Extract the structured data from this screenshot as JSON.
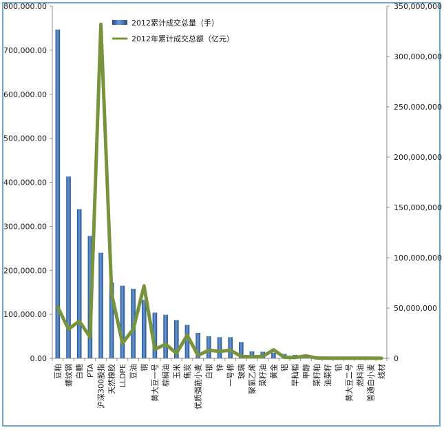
{
  "chart_data": {
    "type": "bar",
    "title": "",
    "xlabel": "",
    "ylabel": "",
    "y2label": "",
    "ylim": [
      0,
      800000
    ],
    "y2lim": [
      0,
      350000000
    ],
    "y_ticks": [
      "0.00",
      "100,000.00",
      "200,000.00",
      "300,000.00",
      "400,000.00",
      "500,000.00",
      "600,000.00",
      "700,000.00",
      "800,000.00"
    ],
    "y2_ticks": [
      "0",
      "50,000,000",
      "100,000,000",
      "150,000,000",
      "200,000,000",
      "250,000,000",
      "300,000,000",
      "350,000,000"
    ],
    "legend_position": "top",
    "categories": [
      "豆粕",
      "螺纹钢",
      "白糖",
      "PTA",
      "沪深300股指",
      "天然橡胶",
      "LLDPE",
      "豆油",
      "铜",
      "黄大豆一号",
      "棕榈油",
      "玉米",
      "焦炭",
      "优质强筋小麦",
      "白银",
      "锌",
      "一号棉",
      "玻璃",
      "聚氯乙烯",
      "菜籽油",
      "黄金",
      "铝",
      "早籼稻",
      "甲醇",
      "菜籽粕",
      "油菜籽",
      "铅",
      "黄大豆二号",
      "燃料油",
      "普通白小麦",
      "线材"
    ],
    "series": [
      {
        "name": "2012累计成交总量（手）",
        "kind": "bar",
        "axis": "left",
        "color": "#3a6fb4",
        "values": [
          747000,
          413000,
          339000,
          278000,
          240000,
          172000,
          165000,
          158000,
          133000,
          104000,
          99000,
          87000,
          76000,
          58000,
          50000,
          48000,
          48000,
          37000,
          16000,
          15000,
          13000,
          10000,
          8000,
          6000,
          2000,
          1500,
          1000,
          1000,
          800,
          700,
          500
        ]
      },
      {
        "name": "2012年累计成交总额（亿元）",
        "kind": "line",
        "axis": "right",
        "color": "#77933c",
        "values": [
          51000000,
          29000000,
          37000000,
          21000000,
          332000000,
          64000000,
          15000000,
          29000000,
          72000000,
          9000000,
          14000000,
          5000000,
          23000000,
          3000000,
          8000000,
          7000000,
          8000000,
          2000000,
          1500000,
          2000000,
          8500000,
          1000000,
          800000,
          2500000,
          300000,
          200000,
          200000,
          200000,
          200000,
          200000,
          100000
        ]
      }
    ]
  }
}
